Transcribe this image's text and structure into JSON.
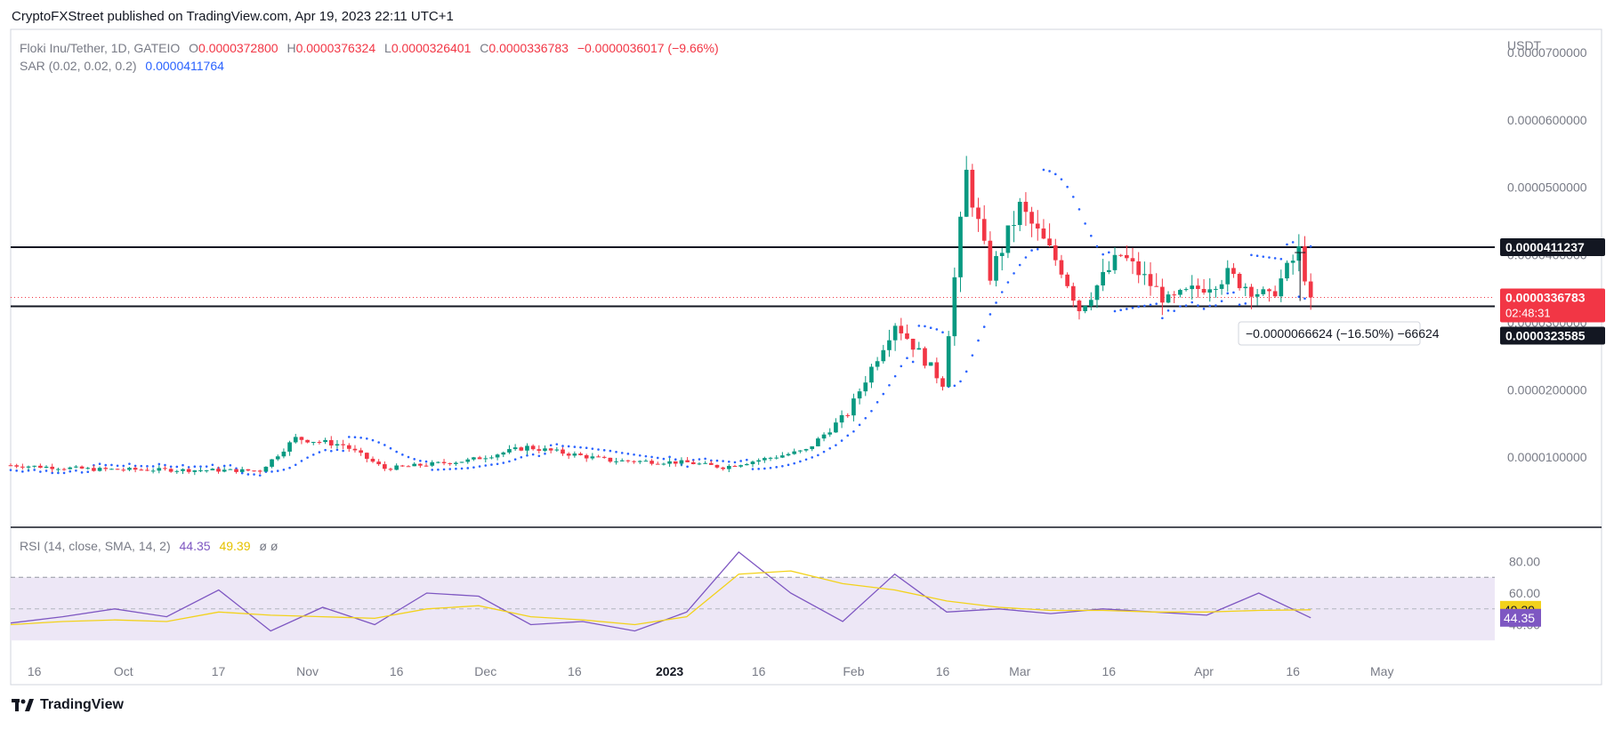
{
  "header": {
    "publisher_line": "CryptoFXStreet published on TradingView.com, Apr 19, 2023 22:11 UTC+1"
  },
  "legend": {
    "symbol": "Floki Inu/Tether, 1D, GATEIO",
    "o_label": "O",
    "o_value": "0.0000372800",
    "h_label": "H",
    "h_value": "0.0000376324",
    "l_label": "L",
    "l_value": "0.0000326401",
    "c_label": "C",
    "c_value": "0.0000336783",
    "change": "−0.0000036017 (−9.66%)",
    "sar_label": "SAR (0.02, 0.02, 0.2)",
    "sar_value": "0.0000411764"
  },
  "rsi_legend": {
    "label": "RSI (14, close, SMA, 14, 2)",
    "rsi_value": "44.35",
    "sma_value": "49.39",
    "extra": "ø ø"
  },
  "price_axis": {
    "currency": "USDT",
    "ticks": [
      "0.0000700000",
      "0.0000600000",
      "0.0000500000",
      "0.0000400000",
      "0.0000300000",
      "0.0000200000",
      "0.0000100000"
    ]
  },
  "rsi_axis": {
    "ticks": [
      "80.00",
      "60.00",
      "40.00"
    ]
  },
  "time_axis": {
    "labels": [
      "16",
      "Oct",
      "17",
      "Nov",
      "16",
      "Dec",
      "16",
      "2023",
      "16",
      "Feb",
      "16",
      "Mar",
      "16",
      "Apr",
      "16",
      "May"
    ]
  },
  "badges": {
    "resistance": "0.0000411237",
    "last_price": "0.0000336783",
    "countdown": "02:48:31",
    "support": "0.0000323585",
    "rsi_sma": "49.39",
    "rsi_value": "44.35"
  },
  "measure_label": "−0.0000066624 (−16.50%) −66624",
  "footer": {
    "brand": "TradingView"
  },
  "colors": {
    "up": "#089981",
    "down": "#f23645",
    "sar": "#2962ff",
    "rsi": "#7e57c2",
    "rsi_sma": "#f2d21b",
    "band": "#ede7f6"
  },
  "chart_data": [
    {
      "type": "candlestick",
      "title": "Floki Inu/Tether, 1D, GATEIO",
      "ylabel": "USDT",
      "ylim": [
        0.0,
        7.25e-05
      ],
      "x_range": [
        "2022-09-12",
        "2023-05-20"
      ],
      "horizontal_lines": [
        4.11237e-05,
        3.23585e-05
      ],
      "last_price": 3.36783e-05,
      "sar_last": 4.11764e-05,
      "points": [
        {
          "x": "2022-09-12",
          "c": 8.8e-06
        },
        {
          "x": "2022-09-26",
          "c": 8.2e-06
        },
        {
          "x": "2022-10-10",
          "c": 8.1e-06
        },
        {
          "x": "2022-10-24",
          "c": 8e-06
        },
        {
          "x": "2022-10-30",
          "c": 1.28e-05
        },
        {
          "x": "2022-11-07",
          "c": 1.18e-05
        },
        {
          "x": "2022-11-14",
          "c": 8.3e-06
        },
        {
          "x": "2022-11-28",
          "c": 9.5e-06
        },
        {
          "x": "2022-12-08",
          "c": 1.15e-05
        },
        {
          "x": "2022-12-22",
          "c": 9.5e-06
        },
        {
          "x": "2023-01-04",
          "c": 9.2e-06
        },
        {
          "x": "2023-01-10",
          "c": 8.5e-06
        },
        {
          "x": "2023-01-24",
          "c": 1.1e-05
        },
        {
          "x": "2023-01-31",
          "c": 1.65e-05
        },
        {
          "x": "2023-02-08",
          "c": 3e-05
        },
        {
          "x": "2023-02-16",
          "c": 2.1e-05
        },
        {
          "x": "2023-02-20",
          "c": 5.2e-05
        },
        {
          "x": "2023-02-24",
          "c": 3.7e-05
        },
        {
          "x": "2023-03-01",
          "c": 4.7e-05
        },
        {
          "x": "2023-03-08",
          "c": 3.8e-05
        },
        {
          "x": "2023-03-11",
          "c": 3.2e-05
        },
        {
          "x": "2023-03-18",
          "c": 4e-05
        },
        {
          "x": "2023-03-26",
          "c": 3.3e-05
        },
        {
          "x": "2023-04-05",
          "c": 3.7e-05
        },
        {
          "x": "2023-04-12",
          "c": 3.35e-05
        },
        {
          "x": "2023-04-17",
          "c": 4.05e-05
        },
        {
          "x": "2023-04-19",
          "c": 3.36783e-05
        }
      ]
    },
    {
      "type": "line",
      "title": "RSI (14, close, SMA, 14, 2)",
      "ylim": [
        20,
        100
      ],
      "bands": [
        30,
        70
      ],
      "series": [
        {
          "values": [
            41,
            45,
            50,
            45,
            62,
            36,
            51,
            40,
            60,
            58,
            40,
            42,
            36,
            48,
            86,
            60,
            42,
            72,
            48,
            50,
            47,
            50,
            48,
            46,
            60,
            44.35
          ]
        },
        {
          "values": [
            40,
            42,
            43,
            42,
            48,
            46,
            45,
            44,
            50,
            52,
            45,
            43,
            40,
            45,
            72,
            74,
            66,
            62,
            55,
            51,
            49,
            49,
            48,
            48,
            49,
            49.39
          ]
        }
      ]
    }
  ]
}
